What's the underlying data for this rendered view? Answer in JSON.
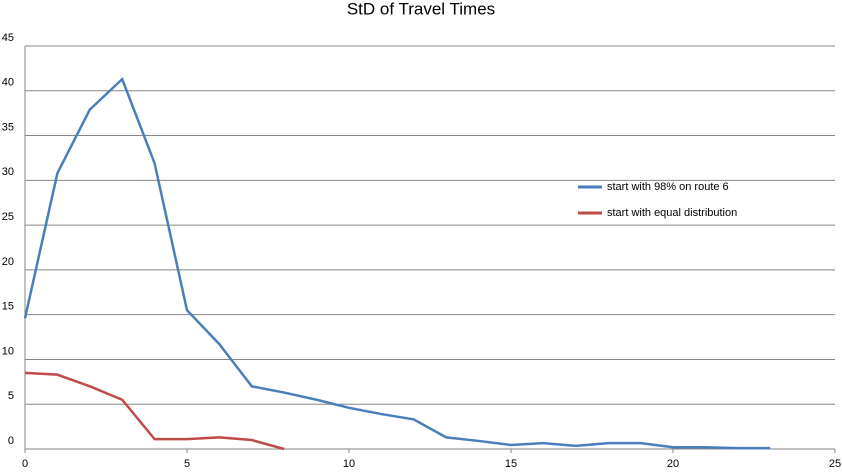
{
  "chart_data": {
    "type": "line",
    "title": "StD of Travel Times",
    "x": [
      0,
      1,
      2,
      3,
      4,
      5,
      6,
      7,
      8,
      9,
      10,
      11,
      12,
      13,
      14,
      15,
      16,
      17,
      18,
      19,
      20,
      21,
      22,
      23
    ],
    "series": [
      {
        "name": "start with 98% on route 6",
        "color": "#4a7ebb",
        "values": [
          14.6,
          30.8,
          37.9,
          41.3,
          31.9,
          15.5,
          11.7,
          7.0,
          6.3,
          5.5,
          4.6,
          3.9,
          3.3,
          1.3,
          0.9,
          0.45,
          0.65,
          0.35,
          0.65,
          0.65,
          0.2,
          0.2,
          0.1,
          0.1
        ]
      },
      {
        "name": "start with equal distribution",
        "color": "#be4b48",
        "values": [
          8.5,
          8.3,
          7.0,
          5.5,
          1.1,
          1.1,
          1.3,
          1.0,
          0,
          null,
          null,
          null,
          null,
          null,
          null,
          null,
          null,
          null,
          null,
          null,
          null,
          null,
          null,
          null
        ]
      }
    ],
    "xlim": [
      0,
      25
    ],
    "xticks": [
      0,
      5,
      10,
      15,
      20,
      25
    ],
    "ylim": [
      0,
      45
    ],
    "yticks": [
      0,
      5,
      10,
      15,
      20,
      25,
      30,
      35,
      40,
      45
    ],
    "grid": true,
    "legend": "right"
  }
}
